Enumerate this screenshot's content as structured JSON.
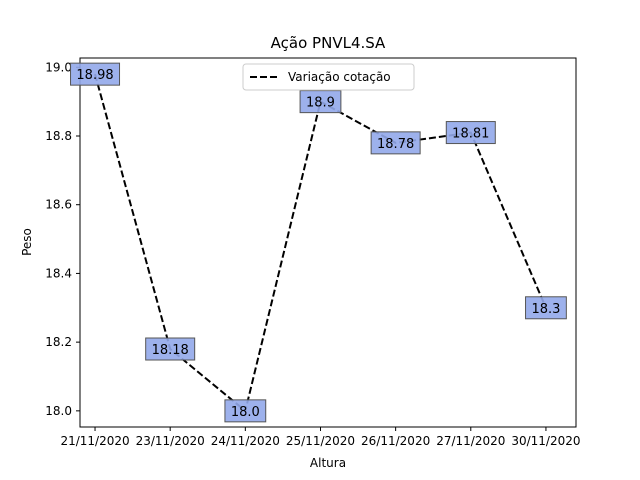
{
  "chart_data": {
    "type": "line",
    "title": "Ação PNVL4.SA",
    "xlabel": "Altura",
    "ylabel": "Peso",
    "categories": [
      "21/11/2020",
      "23/11/2020",
      "24/11/2020",
      "25/11/2020",
      "26/11/2020",
      "27/11/2020",
      "30/11/2020"
    ],
    "series": [
      {
        "name": "Variação cotação",
        "values": [
          18.98,
          18.18,
          18.0,
          18.9,
          18.78,
          18.81,
          18.3
        ],
        "style": "dashed",
        "color": "#000000"
      }
    ],
    "data_labels": [
      "18.98",
      "18.18",
      "18.0",
      "18.9",
      "18.78",
      "18.81",
      "18.3"
    ],
    "label_box_color": "#92a8ea",
    "ylim": [
      17.953,
      19.027
    ],
    "yticks": [
      18.0,
      18.2,
      18.4,
      18.6,
      18.8,
      19.0
    ],
    "ytick_labels": [
      "18.0",
      "18.2",
      "18.4",
      "18.6",
      "18.8",
      "19.0"
    ],
    "legend_position": "top-center",
    "grid": false
  }
}
